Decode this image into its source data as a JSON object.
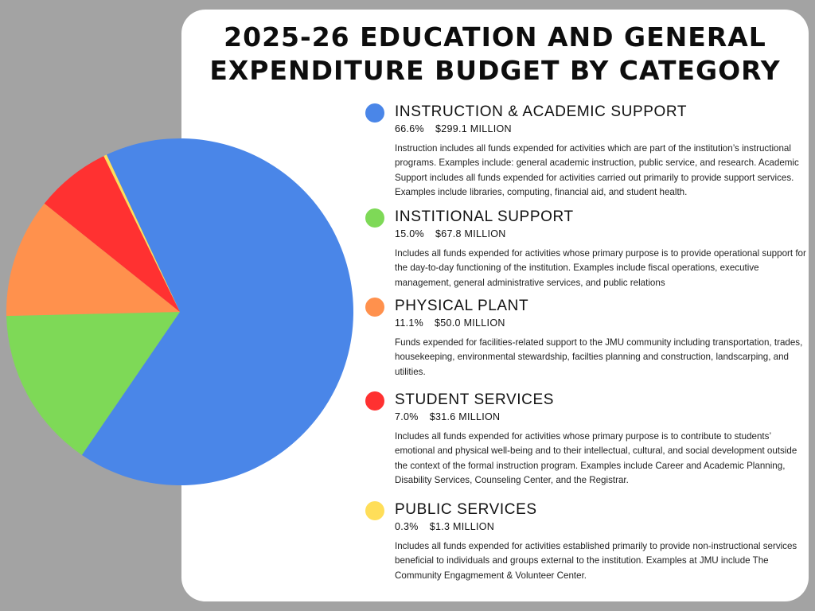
{
  "title_line1": "2025-26 EDUCATION AND GENERAL",
  "title_line2": "EXPENDITURE BUDGET BY CATEGORY",
  "colors": {
    "instruction": "#4a86e8",
    "institutional": "#7ed957",
    "physical": "#ff914d",
    "student": "#ff3131",
    "public": "#ffde59"
  },
  "categories": [
    {
      "name": "INSTRUCTION & ACADEMIC SUPPORT",
      "percent": "66.6%",
      "amount": "$299.1 MILLION",
      "color": "#4a86e8",
      "description": "Instruction includes all funds expended for activities which are part of the institution’s instructional programs.  Examples include:  general academic instruction, public service, and research. Academic Support includes all funds expended for activities carried out primarily to provide support services.  Examples include  libraries, computing,  financial aid, and student health."
    },
    {
      "name": "INSTITIONAL SUPPORT",
      "percent": "15.0%",
      "amount": "$67.8 MILLION",
      "color": "#7ed957",
      "description": "Includes all funds expended for activities whose primary purpose is to provide operational support for the day-to-day functioning of the institution. Examples include fiscal operations, executive management, general administrative services, and public relations"
    },
    {
      "name": "PHYSICAL PLANT",
      "percent": "11.1%",
      "amount": "$50.0 MILLION",
      "color": "#ff914d",
      "description": "Funds expended for facilities-related support to the JMU community including transportation, trades, housekeeping, environmental stewardship, facilties planning and construction, landscarping, and utilities."
    },
    {
      "name": "STUDENT SERVICES",
      "percent": "7.0%",
      "amount": "$31.6 MILLION",
      "color": "#ff3131",
      "description": "Includes all funds expended for activities whose primary purpose is to contribute to students’ emotional and physical well-being and to their intellectual, cultural, and social development outside the context of the formal instruction program.  Examples include Career and Academic Planning, Disability Services, Counseling Center, and the Registrar."
    },
    {
      "name": "PUBLIC SERVICES",
      "percent": "0.3%",
      "amount": "$1.3 MILLION",
      "color": "#ffde59",
      "description": "Includes all funds expended for activities established primarily to provide non-instructional services beneficial to individuals and groups external to the institution.  Examples at JMU include The Community Engagmement & Volunteer Center."
    }
  ],
  "chart_data": {
    "type": "pie",
    "title": "2025-26 EDUCATION AND GENERAL EXPENDITURE BUDGET BY CATEGORY",
    "categories": [
      "INSTRUCTION & ACADEMIC SUPPORT",
      "INSTITIONAL SUPPORT",
      "PHYSICAL PLANT",
      "STUDENT SERVICES",
      "PUBLIC SERVICES"
    ],
    "values": [
      299.1,
      67.8,
      50.0,
      31.6,
      1.3
    ],
    "percent": [
      66.6,
      15.0,
      11.1,
      7.0,
      0.3
    ],
    "colors": [
      "#4a86e8",
      "#7ed957",
      "#ff914d",
      "#ff3131",
      "#ffde59"
    ],
    "units": "$ MILLION",
    "legend_position": "right"
  }
}
